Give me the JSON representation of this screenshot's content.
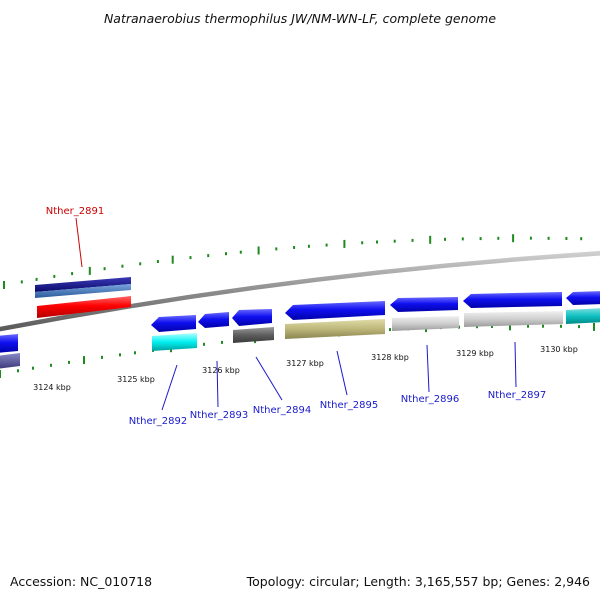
{
  "title": "Natranaerobius thermophilus JW/NM-WN-LF, complete genome",
  "footer": {
    "accession": "Accession: NC_010718",
    "summary": "Topology: circular; Length: 3,165,557 bp; Genes: 2,946"
  },
  "colors": {
    "backbone": "#8c8c8c",
    "ticks": "#1f8a1f",
    "label_highlight": "#cc0000",
    "label_default": "#1a1acc"
  },
  "scale_labels": [
    "3124 kbp",
    "3125 kbp",
    "3126 kbp",
    "3127 kbp",
    "3128 kbp",
    "3129 kbp",
    "3130 kbp"
  ],
  "genes": [
    {
      "name": "Nther_2891",
      "highlight": true
    },
    {
      "name": "Nther_2892",
      "highlight": false
    },
    {
      "name": "Nther_2893",
      "highlight": false
    },
    {
      "name": "Nther_2894",
      "highlight": false
    },
    {
      "name": "Nther_2895",
      "highlight": false
    },
    {
      "name": "Nther_2896",
      "highlight": false
    },
    {
      "name": "Nther_2897",
      "highlight": false
    }
  ]
}
